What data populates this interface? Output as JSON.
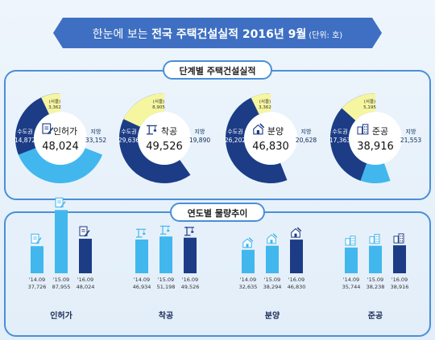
{
  "banner": {
    "prefix": "한눈에 보는 ",
    "bold": "전국 주택건설실적 2016년 9월",
    "unit": "(단위: 호)"
  },
  "sections": {
    "stage_title": "단계별 주택건설실적",
    "trend_title": "연도별 물량추이"
  },
  "colors": {
    "banner": "#3e6fc2",
    "light": "#41b7ee",
    "dark": "#1d3c86",
    "seoul": "#f6f6a0",
    "frame": "#4a8fd8"
  },
  "icons": [
    "document-pen-icon",
    "crane-icon",
    "house-hammer-icon",
    "buildings-icon"
  ],
  "chart_data": [
    {
      "type": "pie",
      "title": "단계별 주택건설실적",
      "donuts": [
        {
          "label": "인허가",
          "total": "48,024",
          "metro_label": "수도권",
          "metro": "14,872",
          "local_label": "지방",
          "local": "33,152",
          "seoul_label": "(서울)",
          "seoul": "3,362",
          "metro_value": 14872,
          "local_value": 33152,
          "seoul_value": 3362
        },
        {
          "label": "착공",
          "total": "49,526",
          "metro_label": "수도권",
          "metro": "29,636",
          "local_label": "지방",
          "local": "19,890",
          "seoul_label": "(서울)",
          "seoul": "8,905",
          "metro_value": 29636,
          "local_value": 19890,
          "seoul_value": 8905
        },
        {
          "label": "분양",
          "total": "46,830",
          "metro_label": "수도권",
          "metro": "26,202",
          "local_label": "지방",
          "local": "20,628",
          "seoul_label": "(서울)",
          "seoul": "3,362",
          "metro_value": 26202,
          "local_value": 20628,
          "seoul_value": 3362
        },
        {
          "label": "준공",
          "total": "38,916",
          "metro_label": "수도권",
          "metro": "17,363",
          "local_label": "지방",
          "local": "21,553",
          "seoul_label": "(서울)",
          "seoul": "5,195",
          "metro_value": 17363,
          "local_value": 21553,
          "seoul_value": 5195
        }
      ]
    },
    {
      "type": "bar",
      "title": "연도별 물량추이",
      "ylim": [
        0,
        95000
      ],
      "groups": [
        {
          "label": "인허가",
          "categories": [
            "'14.09",
            "'15.09",
            "'16.09"
          ],
          "values": [
            37726,
            87955,
            48024
          ],
          "value_labels": [
            "37,726",
            "87,955",
            "48,024"
          ]
        },
        {
          "label": "착공",
          "categories": [
            "'14.09",
            "'15.09",
            "'16.09"
          ],
          "values": [
            46934,
            51198,
            49526
          ],
          "value_labels": [
            "46,934",
            "51,198",
            "49,526"
          ]
        },
        {
          "label": "분양",
          "categories": [
            "'14.09",
            "'15.09",
            "'16.09"
          ],
          "values": [
            32635,
            38294,
            46830
          ],
          "value_labels": [
            "32,635",
            "38,294",
            "46,830"
          ]
        },
        {
          "label": "준공",
          "categories": [
            "'14.09",
            "'15.09",
            "'16.09"
          ],
          "values": [
            35744,
            38238,
            38916
          ],
          "value_labels": [
            "35,744",
            "38,238",
            "38,916"
          ]
        }
      ]
    }
  ]
}
